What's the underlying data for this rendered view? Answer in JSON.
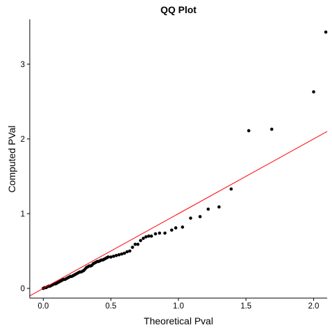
{
  "chart_data": {
    "type": "scatter",
    "title": "QQ Plot",
    "xlabel": "Theoretical Pval",
    "ylabel": "Computed PVal",
    "xlim": [
      -0.1,
      2.1
    ],
    "ylim": [
      -0.13,
      3.6
    ],
    "x_ticks": [
      {
        "value": 0.0,
        "label": "0.0"
      },
      {
        "value": 0.5,
        "label": "0.5"
      },
      {
        "value": 1.0,
        "label": "1.0"
      },
      {
        "value": 1.5,
        "label": "1.5"
      },
      {
        "value": 2.0,
        "label": "2.0"
      }
    ],
    "y_ticks": [
      {
        "value": 0,
        "label": "0"
      },
      {
        "value": 1,
        "label": "1"
      },
      {
        "value": 2,
        "label": "2"
      },
      {
        "value": 3,
        "label": "3"
      }
    ],
    "grid": false,
    "point_color": "#000000",
    "line_color": "#ff0000",
    "reference_line": {
      "slope": 1,
      "intercept": 0
    },
    "points": [
      [
        0.0,
        0.0
      ],
      [
        0.01,
        0.01
      ],
      [
        0.02,
        0.01
      ],
      [
        0.03,
        0.02
      ],
      [
        0.04,
        0.03
      ],
      [
        0.05,
        0.03
      ],
      [
        0.06,
        0.04
      ],
      [
        0.07,
        0.05
      ],
      [
        0.08,
        0.06
      ],
      [
        0.09,
        0.06
      ],
      [
        0.1,
        0.07
      ],
      [
        0.11,
        0.08
      ],
      [
        0.12,
        0.09
      ],
      [
        0.13,
        0.1
      ],
      [
        0.14,
        0.11
      ],
      [
        0.15,
        0.12
      ],
      [
        0.16,
        0.12
      ],
      [
        0.17,
        0.13
      ],
      [
        0.18,
        0.14
      ],
      [
        0.19,
        0.15
      ],
      [
        0.2,
        0.16
      ],
      [
        0.21,
        0.16
      ],
      [
        0.22,
        0.17
      ],
      [
        0.23,
        0.18
      ],
      [
        0.24,
        0.19
      ],
      [
        0.25,
        0.2
      ],
      [
        0.26,
        0.21
      ],
      [
        0.27,
        0.22
      ],
      [
        0.28,
        0.22
      ],
      [
        0.29,
        0.23
      ],
      [
        0.3,
        0.24
      ],
      [
        0.31,
        0.26
      ],
      [
        0.32,
        0.28
      ],
      [
        0.33,
        0.29
      ],
      [
        0.34,
        0.3
      ],
      [
        0.35,
        0.3
      ],
      [
        0.36,
        0.31
      ],
      [
        0.37,
        0.33
      ],
      [
        0.38,
        0.34
      ],
      [
        0.39,
        0.35
      ],
      [
        0.4,
        0.36
      ],
      [
        0.41,
        0.36
      ],
      [
        0.42,
        0.37
      ],
      [
        0.43,
        0.38
      ],
      [
        0.44,
        0.38
      ],
      [
        0.45,
        0.39
      ],
      [
        0.46,
        0.4
      ],
      [
        0.47,
        0.41
      ],
      [
        0.48,
        0.42
      ],
      [
        0.5,
        0.42
      ],
      [
        0.52,
        0.43
      ],
      [
        0.54,
        0.44
      ],
      [
        0.56,
        0.45
      ],
      [
        0.58,
        0.46
      ],
      [
        0.6,
        0.47
      ],
      [
        0.62,
        0.49
      ],
      [
        0.64,
        0.5
      ],
      [
        0.66,
        0.55
      ],
      [
        0.68,
        0.59
      ],
      [
        0.7,
        0.59
      ],
      [
        0.72,
        0.64
      ],
      [
        0.74,
        0.67
      ],
      [
        0.76,
        0.69
      ],
      [
        0.78,
        0.7
      ],
      [
        0.8,
        0.7
      ],
      [
        0.83,
        0.73
      ],
      [
        0.86,
        0.74
      ],
      [
        0.9,
        0.74
      ],
      [
        0.95,
        0.78
      ],
      [
        0.98,
        0.81
      ],
      [
        1.03,
        0.82
      ],
      [
        1.09,
        0.94
      ],
      [
        1.16,
        0.96
      ],
      [
        1.22,
        1.06
      ],
      [
        1.3,
        1.09
      ],
      [
        1.39,
        1.33
      ],
      [
        1.52,
        2.11
      ],
      [
        1.69,
        2.13
      ],
      [
        2.0,
        2.63
      ],
      [
        2.09,
        3.43
      ]
    ]
  }
}
